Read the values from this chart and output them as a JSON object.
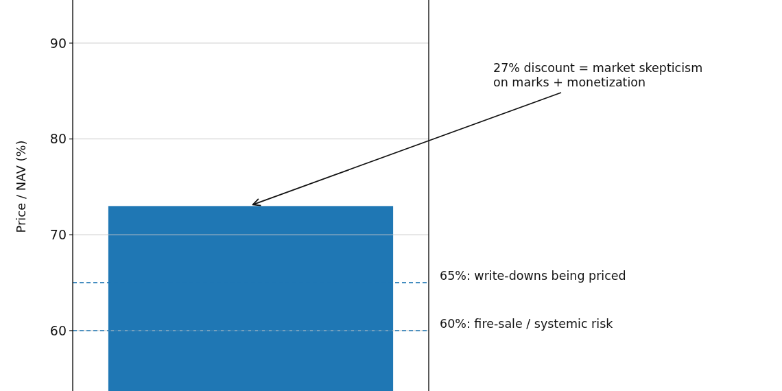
{
  "chart_data": {
    "type": "bar",
    "ylabel": "Price / NAV (%)",
    "categories": [
      null
    ],
    "values": [
      73
    ],
    "color": "#1f77b4",
    "ylim": [
      53.7,
      94.5
    ],
    "yticks": [
      60,
      70,
      80,
      90
    ],
    "grid": "y",
    "tick_labels": "y",
    "ref_lines": [
      {
        "axis": "y",
        "value": 65,
        "label": "65%: write-downs being priced",
        "color": "#1f77b4",
        "line_style": "dashed"
      },
      {
        "axis": "y",
        "value": 60,
        "label": "60%: fire-sale / systemic risk",
        "color": "#1f77b4",
        "line_style": "dashed"
      }
    ],
    "annotations": [
      "27% discount = market skepticism\non marks + monetization"
    ]
  }
}
